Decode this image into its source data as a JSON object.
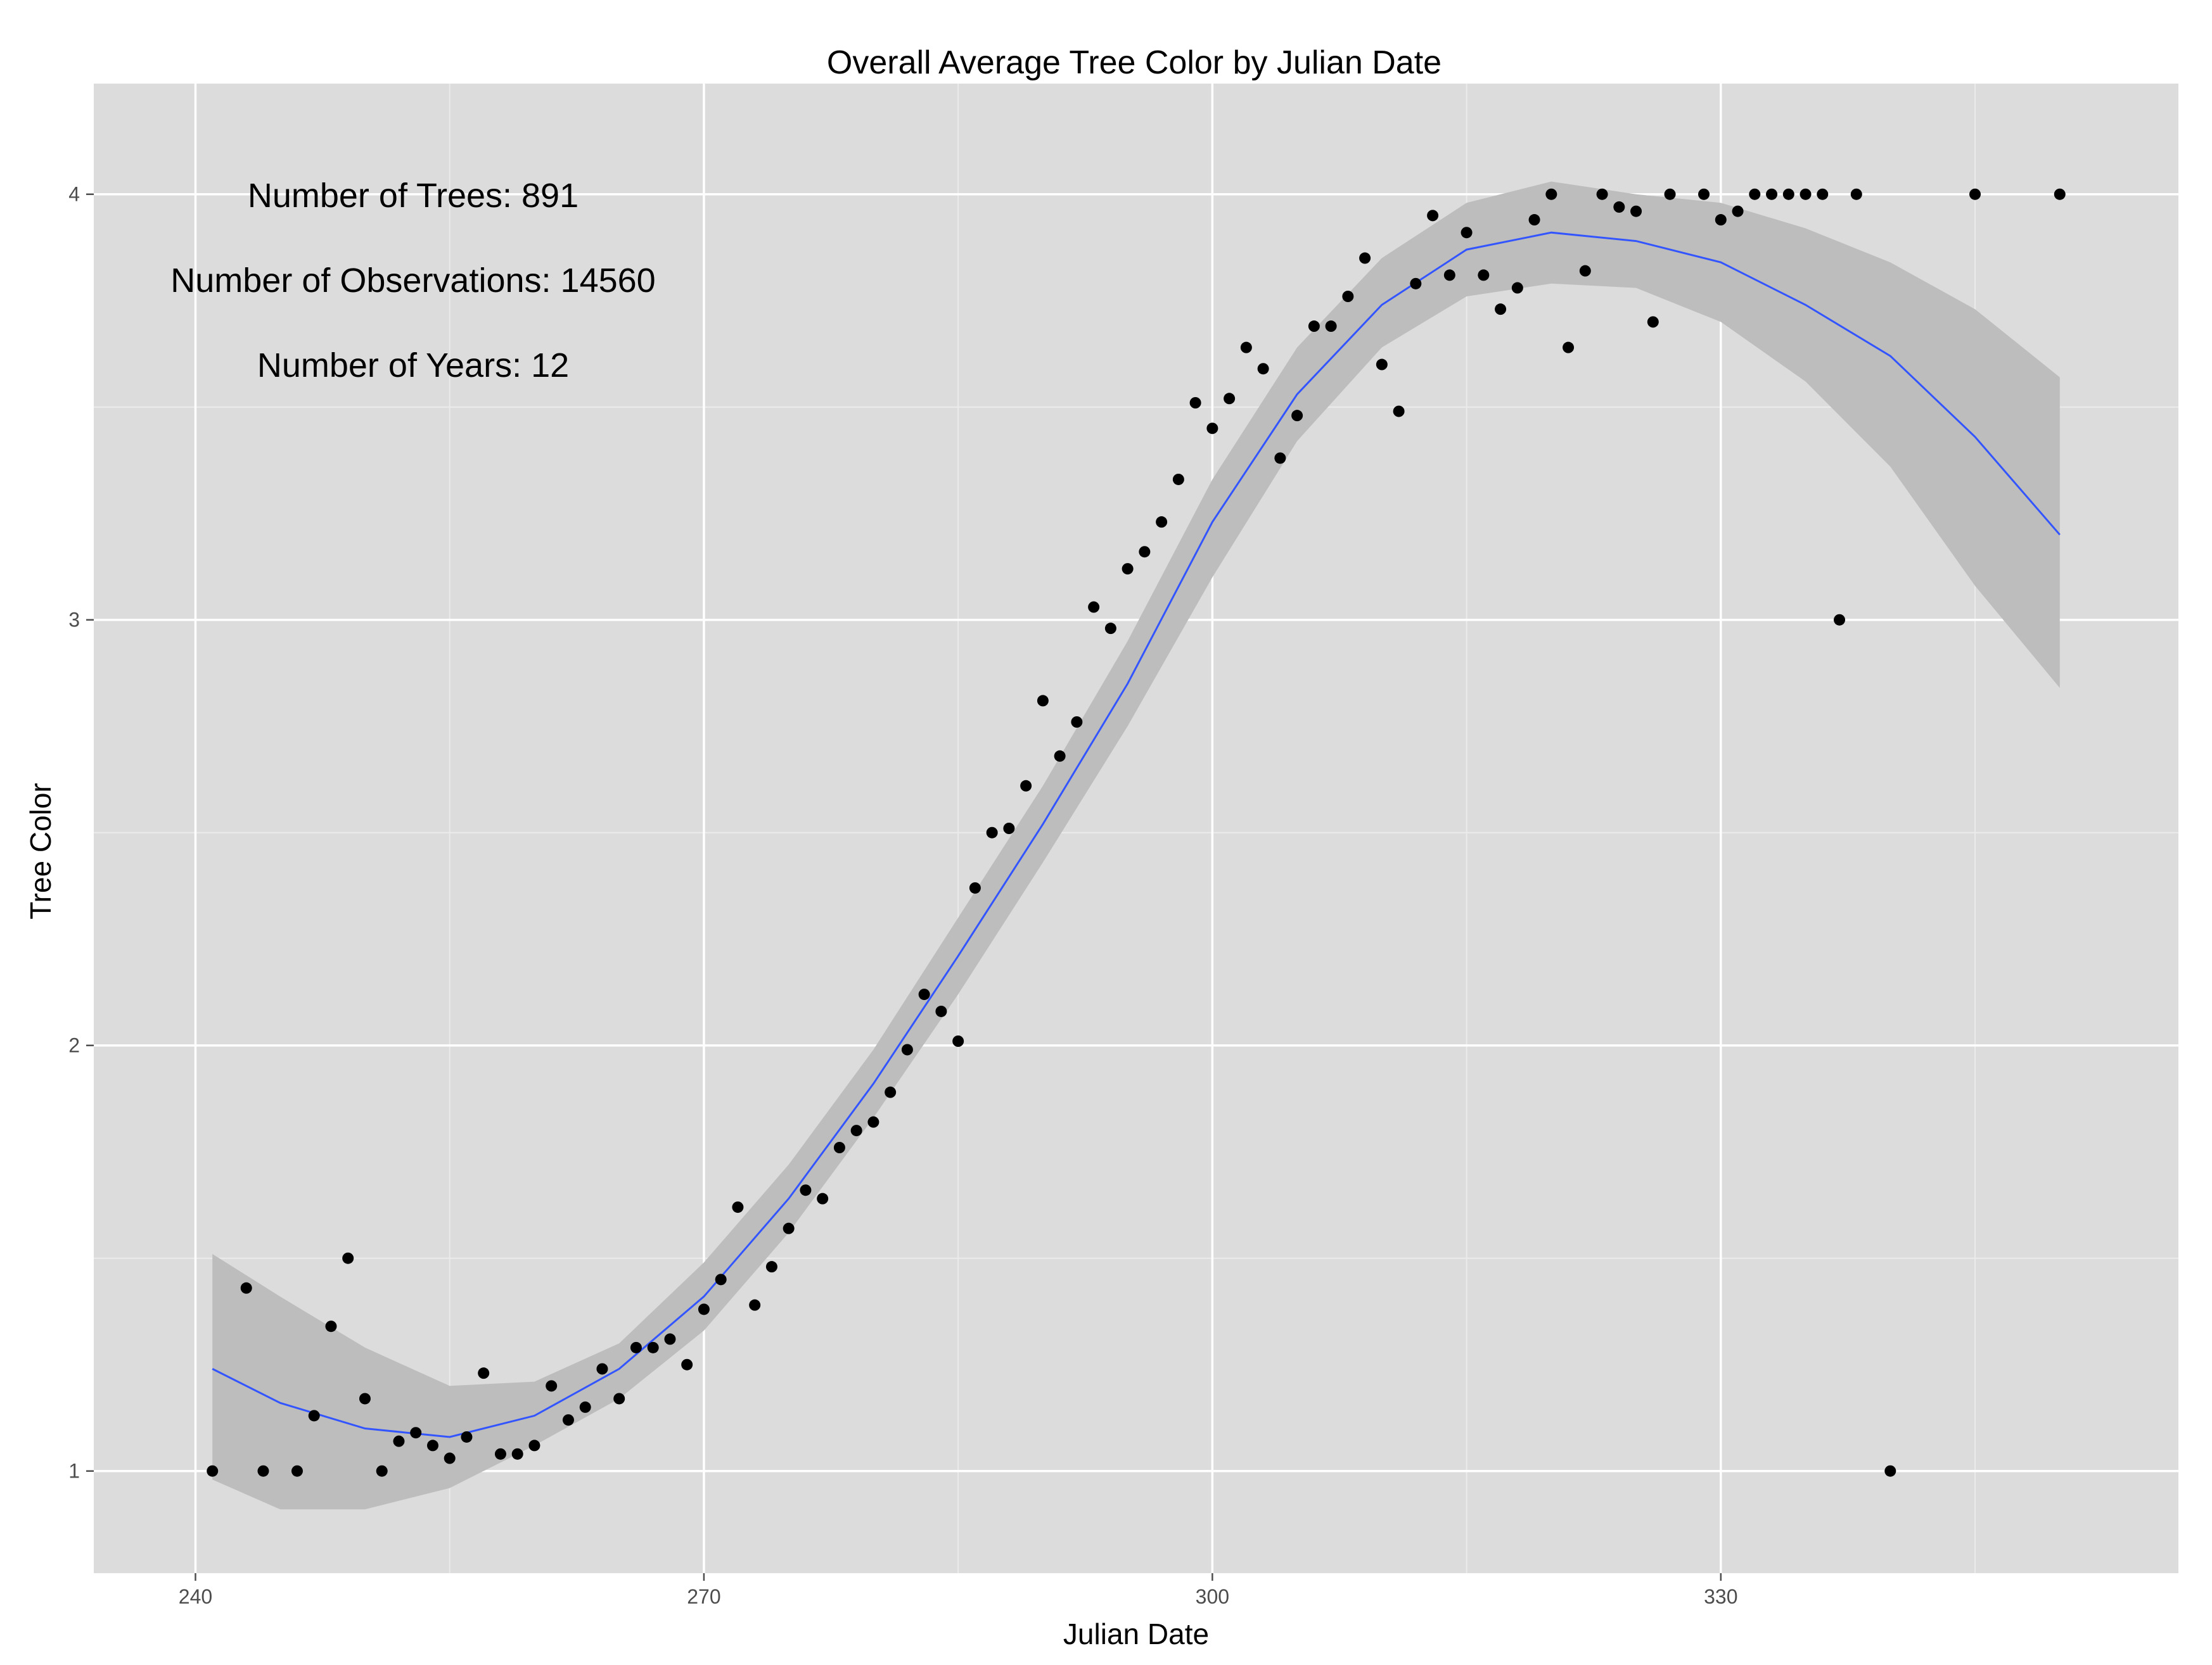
{
  "chart_data": {
    "type": "scatter",
    "title": "Overall Average Tree Color by Julian Date",
    "xlabel": "Julian Date",
    "ylabel": "Tree Color",
    "xlim": [
      234,
      357
    ],
    "ylim": [
      0.76,
      4.26
    ],
    "x_ticks": [
      240,
      270,
      300,
      330
    ],
    "y_ticks": [
      1,
      2,
      3,
      4
    ],
    "grid": true,
    "annotations": [
      "Number of Trees: 891",
      "Number of Observations: 14560",
      "Number of Years: 12"
    ],
    "colors": {
      "panel": "#dcdcdc",
      "grid_major": "#ffffff",
      "grid_minor": "#ebebeb",
      "points": "#000000",
      "smooth_line": "#3355ff",
      "ribbon": "#bdbdbd"
    },
    "series": [
      {
        "type": "scatter",
        "points": [
          [
            241,
            1.0
          ],
          [
            243,
            1.43
          ],
          [
            244,
            1.0
          ],
          [
            246,
            1.0
          ],
          [
            247,
            1.13
          ],
          [
            248,
            1.34
          ],
          [
            249,
            1.5
          ],
          [
            250,
            1.17
          ],
          [
            251,
            1.0
          ],
          [
            252,
            1.07
          ],
          [
            253,
            1.09
          ],
          [
            254,
            1.06
          ],
          [
            255,
            1.03
          ],
          [
            256,
            1.08
          ],
          [
            257,
            1.23
          ],
          [
            258,
            1.04
          ],
          [
            259,
            1.04
          ],
          [
            260,
            1.06
          ],
          [
            261,
            1.2
          ],
          [
            262,
            1.12
          ],
          [
            263,
            1.15
          ],
          [
            264,
            1.24
          ],
          [
            265,
            1.17
          ],
          [
            266,
            1.29
          ],
          [
            267,
            1.29
          ],
          [
            268,
            1.31
          ],
          [
            269,
            1.25
          ],
          [
            270,
            1.38
          ],
          [
            271,
            1.45
          ],
          [
            272,
            1.62
          ],
          [
            273,
            1.39
          ],
          [
            274,
            1.48
          ],
          [
            275,
            1.57
          ],
          [
            276,
            1.66
          ],
          [
            277,
            1.64
          ],
          [
            278,
            1.76
          ],
          [
            279,
            1.8
          ],
          [
            280,
            1.82
          ],
          [
            281,
            1.89
          ],
          [
            282,
            1.99
          ],
          [
            283,
            2.12
          ],
          [
            284,
            2.08
          ],
          [
            285,
            2.01
          ],
          [
            286,
            2.37
          ],
          [
            287,
            2.5
          ],
          [
            288,
            2.51
          ],
          [
            289,
            2.61
          ],
          [
            290,
            2.81
          ],
          [
            291,
            2.68
          ],
          [
            292,
            2.76
          ],
          [
            293,
            3.03
          ],
          [
            294,
            2.98
          ],
          [
            295,
            3.12
          ],
          [
            296,
            3.16
          ],
          [
            297,
            3.23
          ],
          [
            298,
            3.33
          ],
          [
            299,
            3.51
          ],
          [
            300,
            3.45
          ],
          [
            301,
            3.52
          ],
          [
            302,
            3.64
          ],
          [
            303,
            3.59
          ],
          [
            304,
            3.38
          ],
          [
            305,
            3.48
          ],
          [
            306,
            3.69
          ],
          [
            307,
            3.69
          ],
          [
            308,
            3.76
          ],
          [
            309,
            3.85
          ],
          [
            310,
            3.6
          ],
          [
            311,
            3.49
          ],
          [
            312,
            3.79
          ],
          [
            313,
            3.95
          ],
          [
            314,
            3.81
          ],
          [
            315,
            3.91
          ],
          [
            316,
            3.81
          ],
          [
            317,
            3.73
          ],
          [
            318,
            3.78
          ],
          [
            319,
            3.94
          ],
          [
            320,
            4.0
          ],
          [
            321,
            3.64
          ],
          [
            322,
            3.82
          ],
          [
            323,
            4.0
          ],
          [
            324,
            3.97
          ],
          [
            325,
            3.96
          ],
          [
            326,
            3.7
          ],
          [
            327,
            4.0
          ],
          [
            329,
            4.0
          ],
          [
            330,
            3.94
          ],
          [
            331,
            3.96
          ],
          [
            332,
            4.0
          ],
          [
            333,
            4.0
          ],
          [
            334,
            4.0
          ],
          [
            335,
            4.0
          ],
          [
            336,
            4.0
          ],
          [
            337,
            3.0
          ],
          [
            338,
            4.0
          ],
          [
            340,
            1.0
          ],
          [
            345,
            4.0
          ],
          [
            350,
            4.0
          ]
        ]
      },
      {
        "type": "smooth",
        "x": [
          241,
          245,
          250,
          255,
          260,
          265,
          270,
          275,
          280,
          285,
          290,
          295,
          300,
          305,
          310,
          315,
          320,
          325,
          330,
          335,
          340,
          345,
          350
        ],
        "y": [
          1.24,
          1.16,
          1.1,
          1.08,
          1.13,
          1.24,
          1.41,
          1.64,
          1.91,
          2.21,
          2.52,
          2.85,
          3.23,
          3.53,
          3.74,
          3.87,
          3.91,
          3.89,
          3.84,
          3.74,
          3.62,
          3.43,
          3.2
        ],
        "lower": [
          0.98,
          0.91,
          0.91,
          0.96,
          1.06,
          1.17,
          1.33,
          1.56,
          1.83,
          2.12,
          2.43,
          2.75,
          3.1,
          3.42,
          3.64,
          3.76,
          3.79,
          3.78,
          3.7,
          3.56,
          3.36,
          3.08,
          2.84
        ],
        "upper": [
          1.51,
          1.41,
          1.29,
          1.2,
          1.21,
          1.3,
          1.49,
          1.72,
          1.99,
          2.3,
          2.61,
          2.95,
          3.33,
          3.64,
          3.85,
          3.98,
          4.03,
          4.0,
          3.98,
          3.92,
          3.84,
          3.73,
          3.57
        ]
      }
    ]
  }
}
